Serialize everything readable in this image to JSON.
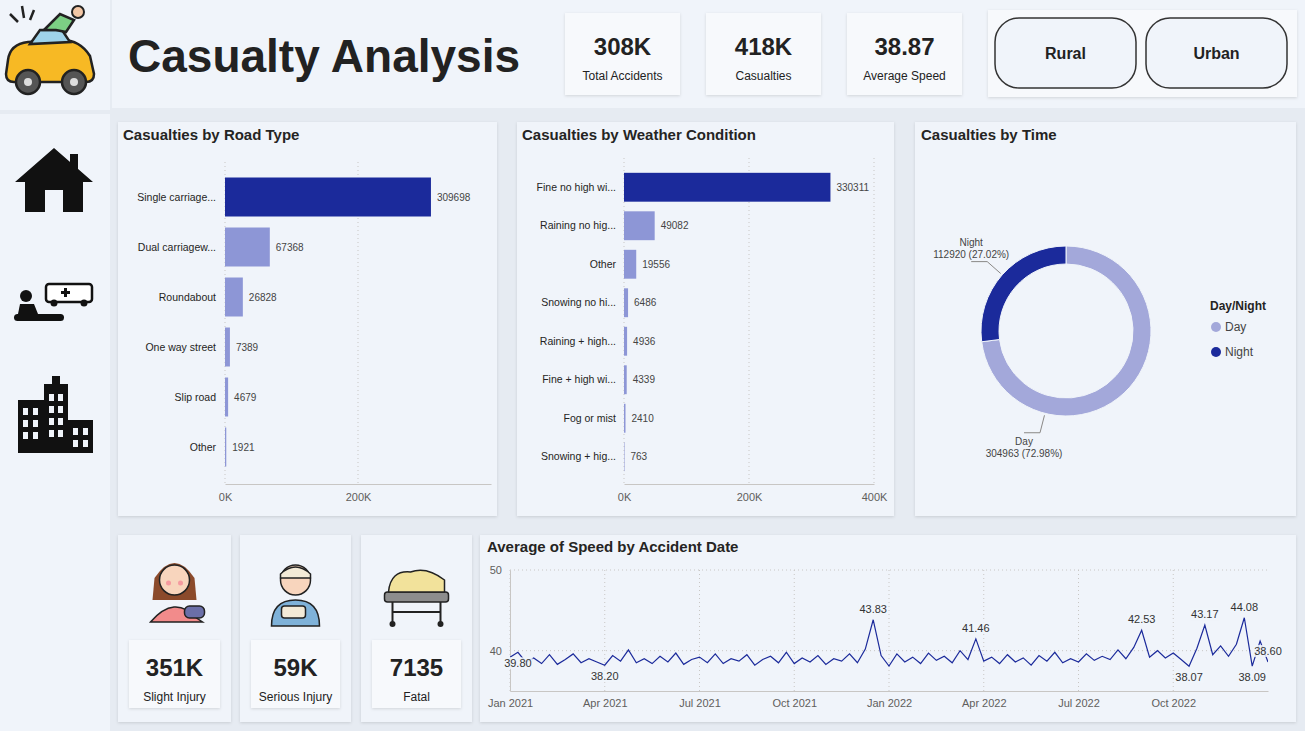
{
  "header": {
    "title": "Casualty Analysis"
  },
  "kpis": [
    {
      "value": "308K",
      "label": "Total Accidents"
    },
    {
      "value": "418K",
      "label": "Casualties"
    },
    {
      "value": "38.87",
      "label": "Average Speed"
    }
  ],
  "filters": [
    "Rural",
    "Urban"
  ],
  "injuries": [
    {
      "value": "351K",
      "label": "Slight Injury"
    },
    {
      "value": "59K",
      "label": "Serious Injury"
    },
    {
      "value": "7135",
      "label": "Fatal"
    }
  ],
  "chart_data": [
    {
      "type": "bar",
      "orientation": "horizontal",
      "title": "Casualties by Road Type",
      "categories": [
        "Single carriage...",
        "Dual carriagew...",
        "Roundabout",
        "One way street",
        "Slip road",
        "Other"
      ],
      "values": [
        309698,
        67368,
        26828,
        7389,
        4679,
        1921
      ],
      "colors": [
        "#1b2a9b",
        "#8d96d6",
        "#8d96d6",
        "#8d96d6",
        "#8d96d6",
        "#8d96d6"
      ],
      "xlim": [
        0,
        400000
      ],
      "xticks": [
        {
          "value": 0,
          "label": "0K"
        },
        {
          "value": 200000,
          "label": "200K"
        }
      ],
      "grid": true,
      "data_labels": true
    },
    {
      "type": "bar",
      "orientation": "horizontal",
      "title": "Casualties by Weather Condition",
      "categories": [
        "Fine no high wi...",
        "Raining no hig...",
        "Other",
        "Snowing no hi...",
        "Raining + high...",
        "Fine + high wi...",
        "Fog or mist",
        "Snowing + hig..."
      ],
      "values": [
        330311,
        49082,
        19556,
        6486,
        4936,
        4339,
        2410,
        763
      ],
      "colors": [
        "#1b2a9b",
        "#8d96d6",
        "#8d96d6",
        "#8d96d6",
        "#8d96d6",
        "#8d96d6",
        "#8d96d6",
        "#8d96d6"
      ],
      "xlim": [
        0,
        400000
      ],
      "xticks": [
        {
          "value": 0,
          "label": "0K"
        },
        {
          "value": 200000,
          "label": "200K"
        },
        {
          "value": 400000,
          "label": "400K"
        }
      ],
      "grid": true,
      "data_labels": true
    },
    {
      "type": "donut",
      "title": "Casualties by Time",
      "categories": [
        "Day",
        "Night"
      ],
      "values": [
        304963,
        112920
      ],
      "value_labels": [
        "304963 (72.98%)",
        "112920 (27.02%)"
      ],
      "colors": [
        "#a3a8da",
        "#1b2a9b"
      ],
      "legend": "right",
      "legend_title": "Day/Night"
    },
    {
      "type": "line",
      "title": "Average of Speed by Accident Date",
      "color": "#1b2a9b",
      "x": [
        0,
        0.25,
        0.5,
        0.75,
        1,
        1.25,
        1.5,
        1.75,
        2,
        2.25,
        2.5,
        2.75,
        3,
        3.25,
        3.5,
        3.75,
        4,
        4.25,
        4.5,
        4.75,
        5,
        5.25,
        5.5,
        5.75,
        6,
        6.25,
        6.5,
        6.75,
        7,
        7.25,
        7.5,
        7.75,
        8,
        8.25,
        8.5,
        8.75,
        9,
        9.25,
        9.5,
        9.75,
        10,
        10.25,
        10.5,
        10.75,
        11,
        11.25,
        11.5,
        11.75,
        12,
        12.25,
        12.5,
        12.75,
        13,
        13.25,
        13.5,
        13.75,
        14,
        14.25,
        14.5,
        14.75,
        15,
        15.25,
        15.5,
        15.75,
        16,
        16.25,
        16.5,
        16.75,
        17,
        17.25,
        17.5,
        17.75,
        18,
        18.25,
        18.5,
        18.75,
        19,
        19.25,
        19.5,
        19.75,
        20,
        20.25,
        20.5,
        20.75,
        21,
        21.25,
        21.5,
        21.75,
        22,
        22.25,
        22.5,
        22.75,
        23,
        23.25,
        23.5,
        23.75,
        24
      ],
      "values": [
        39.2,
        39.8,
        38.6,
        39.1,
        38.4,
        39.5,
        38.3,
        38.9,
        39.6,
        38.5,
        39.0,
        38.6,
        38.2,
        39.4,
        38.7,
        40.1,
        38.5,
        39.0,
        38.4,
        39.3,
        38.6,
        39.7,
        38.3,
        38.9,
        39.2,
        38.5,
        39.6,
        38.4,
        39.0,
        38.7,
        39.5,
        38.2,
        38.9,
        39.3,
        38.5,
        39.8,
        38.4,
        39.1,
        38.6,
        39.4,
        38.3,
        39.0,
        38.7,
        39.6,
        38.5,
        40.2,
        43.83,
        39.4,
        38.1,
        39.6,
        38.6,
        39.2,
        38.4,
        39.7,
        38.8,
        39.3,
        38.5,
        40.0,
        38.9,
        41.46,
        38.7,
        39.2,
        38.4,
        39.5,
        38.6,
        39.1,
        38.2,
        39.4,
        38.7,
        39.8,
        38.5,
        39.0,
        38.6,
        39.6,
        38.8,
        39.3,
        38.9,
        40.1,
        39.0,
        40.4,
        42.53,
        39.2,
        40.0,
        39.1,
        39.7,
        38.9,
        38.07,
        40.3,
        43.17,
        39.5,
        40.6,
        39.3,
        40.8,
        44.08,
        38.09,
        41.2,
        38.6
      ],
      "xlim": [
        0,
        24
      ],
      "xticks": [
        {
          "value": 0,
          "label": "Jan 2021"
        },
        {
          "value": 3,
          "label": "Apr 2021"
        },
        {
          "value": 6,
          "label": "Jul 2021"
        },
        {
          "value": 9,
          "label": "Oct 2021"
        },
        {
          "value": 12,
          "label": "Jan 2022"
        },
        {
          "value": 15,
          "label": "Apr 2022"
        },
        {
          "value": 18,
          "label": "Jul 2022"
        },
        {
          "value": 21,
          "label": "Oct 2022"
        }
      ],
      "ylim": [
        35,
        50
      ],
      "yticks": [
        40,
        50
      ],
      "grid": true,
      "annotations": [
        {
          "x": 0.25,
          "y": 39.8,
          "text": "39.80"
        },
        {
          "x": 3,
          "y": 38.2,
          "text": "38.20"
        },
        {
          "x": 11.5,
          "y": 43.83,
          "text": "43.83"
        },
        {
          "x": 14.75,
          "y": 41.46,
          "text": "41.46"
        },
        {
          "x": 20,
          "y": 42.53,
          "text": "42.53"
        },
        {
          "x": 21.5,
          "y": 38.07,
          "text": "38.07"
        },
        {
          "x": 22,
          "y": 43.17,
          "text": "43.17"
        },
        {
          "x": 23.25,
          "y": 44.08,
          "text": "44.08"
        },
        {
          "x": 23.5,
          "y": 38.09,
          "text": "38.09"
        },
        {
          "x": 24,
          "y": 38.6,
          "text": "38.60"
        }
      ]
    }
  ]
}
